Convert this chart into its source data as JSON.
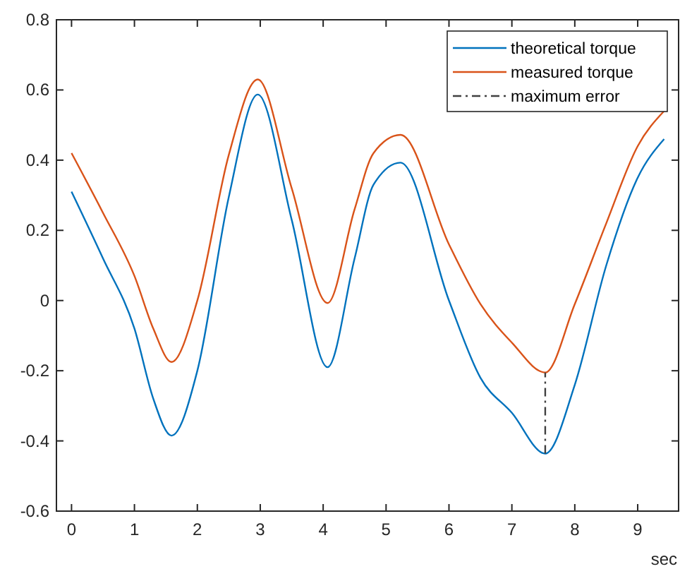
{
  "chart_data": {
    "type": "line",
    "xlabel": "sec",
    "xlim": [
      -0.24,
      9.65
    ],
    "ylim": [
      -0.6,
      0.8
    ],
    "xticks": [
      0,
      1,
      2,
      3,
      4,
      5,
      6,
      7,
      8,
      9
    ],
    "yticks": [
      -0.6,
      -0.4,
      -0.2,
      0,
      0.2,
      0.4,
      0.6,
      0.8
    ],
    "grid": false,
    "legend": "top right",
    "marker": "none",
    "series": [
      {
        "name": "theoretical torque",
        "color": "#0072bd",
        "line_style": "solid",
        "x": [
          0,
          0.5,
          1,
          1.3,
          1.59,
          2,
          2.5,
          2.96,
          3.5,
          4.07,
          4.5,
          4.8,
          5.23,
          6,
          6.5,
          7,
          7.53,
          8,
          8.5,
          9,
          9.42
        ],
        "values": [
          0.31,
          0.12,
          -0.08,
          -0.28,
          -0.385,
          -0.2,
          0.295,
          0.587,
          0.23,
          -0.19,
          0.12,
          0.33,
          0.393,
          0.0,
          -0.22,
          -0.32,
          -0.436,
          -0.24,
          0.1,
          0.35,
          0.46
        ]
      },
      {
        "name": "measured torque",
        "color": "#d95319",
        "line_style": "solid",
        "x": [
          0,
          0.5,
          1,
          1.3,
          1.59,
          2,
          2.5,
          2.96,
          3.5,
          4.07,
          4.5,
          4.8,
          5.23,
          6,
          6.5,
          7,
          7.53,
          8,
          8.5,
          9,
          9.42
        ],
        "values": [
          0.42,
          0.25,
          0.07,
          -0.08,
          -0.175,
          0.0,
          0.415,
          0.63,
          0.32,
          -0.007,
          0.26,
          0.42,
          0.472,
          0.16,
          -0.01,
          -0.12,
          -0.205,
          -0.01,
          0.22,
          0.44,
          0.54
        ]
      },
      {
        "name": "maximum error",
        "color": "#404040",
        "line_style": "dashdot",
        "x": [
          7.53,
          7.53
        ],
        "values": [
          -0.436,
          -0.205
        ]
      }
    ]
  }
}
